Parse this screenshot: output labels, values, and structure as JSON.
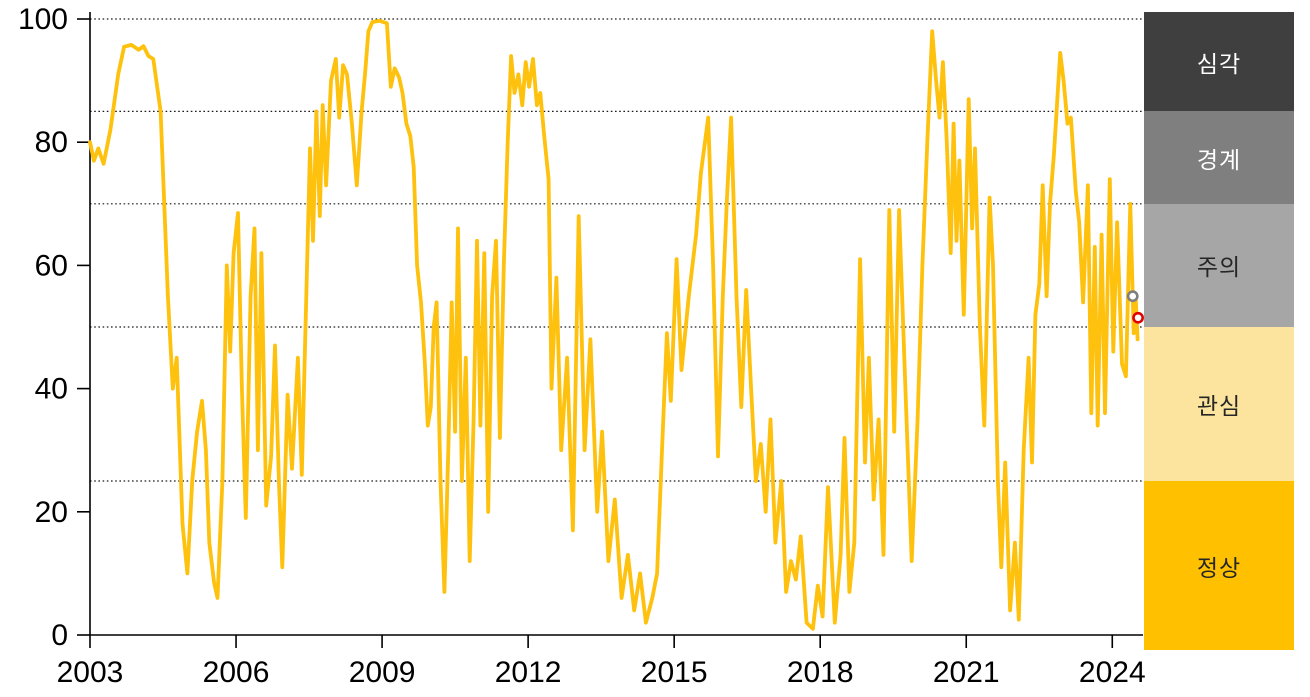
{
  "chart_data": {
    "type": "line",
    "title": "",
    "xlabel": "",
    "ylabel": "",
    "x_axis": {
      "min": 2003,
      "max": 2024.75,
      "tick_labels": [
        "2003",
        "2006",
        "2009",
        "2012",
        "2015",
        "2018",
        "2021",
        "2024"
      ],
      "tick_values": [
        2003,
        2006,
        2009,
        2012,
        2015,
        2018,
        2021,
        2024
      ]
    },
    "y_axis": {
      "min": 0,
      "max": 100,
      "tick_labels": [
        "0",
        "20",
        "40",
        "60",
        "80",
        "100"
      ],
      "tick_values": [
        0,
        20,
        40,
        60,
        80,
        100
      ]
    },
    "dotted_gridlines_at": [
      25,
      50,
      70,
      85,
      100
    ],
    "line_color": "#FEC10E",
    "series": [
      {
        "name": "index",
        "points": [
          [
            2003.0,
            80
          ],
          [
            2003.08,
            77
          ],
          [
            2003.17,
            79
          ],
          [
            2003.28,
            76.5
          ],
          [
            2003.42,
            82
          ],
          [
            2003.58,
            91
          ],
          [
            2003.7,
            95.5
          ],
          [
            2003.85,
            95.8
          ],
          [
            2004.0,
            95
          ],
          [
            2004.1,
            95.6
          ],
          [
            2004.2,
            94
          ],
          [
            2004.3,
            93.5
          ],
          [
            2004.45,
            85
          ],
          [
            2004.6,
            55
          ],
          [
            2004.7,
            40
          ],
          [
            2004.78,
            45
          ],
          [
            2004.9,
            18
          ],
          [
            2005.0,
            10
          ],
          [
            2005.1,
            25
          ],
          [
            2005.2,
            33
          ],
          [
            2005.3,
            38
          ],
          [
            2005.38,
            30
          ],
          [
            2005.45,
            15
          ],
          [
            2005.55,
            8.5
          ],
          [
            2005.62,
            6
          ],
          [
            2005.72,
            25
          ],
          [
            2005.81,
            60
          ],
          [
            2005.88,
            46
          ],
          [
            2005.95,
            62
          ],
          [
            2006.04,
            68.5
          ],
          [
            2006.12,
            40
          ],
          [
            2006.2,
            19
          ],
          [
            2006.3,
            55
          ],
          [
            2006.38,
            66
          ],
          [
            2006.45,
            30
          ],
          [
            2006.52,
            62
          ],
          [
            2006.62,
            21
          ],
          [
            2006.72,
            29
          ],
          [
            2006.8,
            47
          ],
          [
            2006.88,
            25
          ],
          [
            2006.95,
            11
          ],
          [
            2007.06,
            39
          ],
          [
            2007.15,
            27
          ],
          [
            2007.27,
            45
          ],
          [
            2007.35,
            26
          ],
          [
            2007.45,
            57
          ],
          [
            2007.52,
            79
          ],
          [
            2007.58,
            64
          ],
          [
            2007.65,
            85
          ],
          [
            2007.72,
            68
          ],
          [
            2007.78,
            86
          ],
          [
            2007.85,
            73
          ],
          [
            2007.95,
            90
          ],
          [
            2008.05,
            93.5
          ],
          [
            2008.12,
            84
          ],
          [
            2008.2,
            92.5
          ],
          [
            2008.28,
            91
          ],
          [
            2008.38,
            83
          ],
          [
            2008.48,
            73
          ],
          [
            2008.58,
            85
          ],
          [
            2008.65,
            91
          ],
          [
            2008.72,
            98
          ],
          [
            2008.8,
            99.5
          ],
          [
            2008.95,
            99.7
          ],
          [
            2009.1,
            99.3
          ],
          [
            2009.18,
            89
          ],
          [
            2009.26,
            92
          ],
          [
            2009.35,
            90.5
          ],
          [
            2009.42,
            88
          ],
          [
            2009.5,
            83
          ],
          [
            2009.58,
            81
          ],
          [
            2009.65,
            76
          ],
          [
            2009.72,
            60
          ],
          [
            2009.8,
            54
          ],
          [
            2009.88,
            44
          ],
          [
            2009.94,
            34
          ],
          [
            2010.0,
            37
          ],
          [
            2010.06,
            50
          ],
          [
            2010.12,
            54
          ],
          [
            2010.2,
            25
          ],
          [
            2010.28,
            7
          ],
          [
            2010.36,
            30
          ],
          [
            2010.43,
            54
          ],
          [
            2010.5,
            33
          ],
          [
            2010.56,
            66
          ],
          [
            2010.64,
            25
          ],
          [
            2010.72,
            45
          ],
          [
            2010.8,
            12
          ],
          [
            2010.88,
            35
          ],
          [
            2010.95,
            64
          ],
          [
            2011.02,
            34
          ],
          [
            2011.1,
            62
          ],
          [
            2011.18,
            20
          ],
          [
            2011.26,
            55
          ],
          [
            2011.34,
            64
          ],
          [
            2011.42,
            32
          ],
          [
            2011.5,
            60
          ],
          [
            2011.58,
            80
          ],
          [
            2011.65,
            94
          ],
          [
            2011.72,
            88
          ],
          [
            2011.8,
            91
          ],
          [
            2011.88,
            86
          ],
          [
            2011.95,
            93
          ],
          [
            2012.02,
            89
          ],
          [
            2012.1,
            93.5
          ],
          [
            2012.18,
            86
          ],
          [
            2012.25,
            88
          ],
          [
            2012.33,
            81
          ],
          [
            2012.42,
            74
          ],
          [
            2012.48,
            40
          ],
          [
            2012.58,
            58
          ],
          [
            2012.68,
            30
          ],
          [
            2012.8,
            45
          ],
          [
            2012.92,
            17
          ],
          [
            2013.04,
            68
          ],
          [
            2013.16,
            30
          ],
          [
            2013.28,
            48
          ],
          [
            2013.42,
            20
          ],
          [
            2013.52,
            33
          ],
          [
            2013.65,
            12
          ],
          [
            2013.78,
            22
          ],
          [
            2013.92,
            6
          ],
          [
            2014.05,
            13
          ],
          [
            2014.18,
            4
          ],
          [
            2014.3,
            10
          ],
          [
            2014.42,
            2
          ],
          [
            2014.55,
            6
          ],
          [
            2014.65,
            10
          ],
          [
            2014.75,
            30
          ],
          [
            2014.85,
            49
          ],
          [
            2014.93,
            38
          ],
          [
            2015.05,
            61
          ],
          [
            2015.15,
            43
          ],
          [
            2015.3,
            55
          ],
          [
            2015.45,
            65
          ],
          [
            2015.55,
            75
          ],
          [
            2015.7,
            84
          ],
          [
            2015.8,
            60
          ],
          [
            2015.9,
            29
          ],
          [
            2016.0,
            55
          ],
          [
            2016.08,
            70
          ],
          [
            2016.17,
            84
          ],
          [
            2016.28,
            55
          ],
          [
            2016.38,
            37
          ],
          [
            2016.48,
            56
          ],
          [
            2016.58,
            40
          ],
          [
            2016.68,
            25
          ],
          [
            2016.78,
            31
          ],
          [
            2016.88,
            20
          ],
          [
            2016.98,
            35
          ],
          [
            2017.08,
            15
          ],
          [
            2017.2,
            25
          ],
          [
            2017.3,
            7
          ],
          [
            2017.4,
            12
          ],
          [
            2017.5,
            9
          ],
          [
            2017.6,
            16
          ],
          [
            2017.72,
            2
          ],
          [
            2017.85,
            1
          ],
          [
            2017.95,
            8
          ],
          [
            2018.05,
            3
          ],
          [
            2018.16,
            24
          ],
          [
            2018.3,
            2
          ],
          [
            2018.42,
            13
          ],
          [
            2018.5,
            32
          ],
          [
            2018.6,
            7
          ],
          [
            2018.7,
            15
          ],
          [
            2018.82,
            61
          ],
          [
            2018.92,
            28
          ],
          [
            2019.0,
            45
          ],
          [
            2019.1,
            22
          ],
          [
            2019.2,
            35
          ],
          [
            2019.3,
            13
          ],
          [
            2019.42,
            69
          ],
          [
            2019.52,
            33
          ],
          [
            2019.62,
            69
          ],
          [
            2019.75,
            40
          ],
          [
            2019.88,
            12
          ],
          [
            2020.0,
            35
          ],
          [
            2020.1,
            60
          ],
          [
            2020.2,
            80
          ],
          [
            2020.3,
            98
          ],
          [
            2020.38,
            90
          ],
          [
            2020.45,
            84
          ],
          [
            2020.52,
            93
          ],
          [
            2020.6,
            80
          ],
          [
            2020.68,
            62
          ],
          [
            2020.74,
            83
          ],
          [
            2020.8,
            64
          ],
          [
            2020.86,
            77
          ],
          [
            2020.95,
            52
          ],
          [
            2021.05,
            87
          ],
          [
            2021.12,
            66
          ],
          [
            2021.18,
            79
          ],
          [
            2021.28,
            50
          ],
          [
            2021.37,
            34
          ],
          [
            2021.48,
            71
          ],
          [
            2021.55,
            60
          ],
          [
            2021.65,
            25
          ],
          [
            2021.72,
            11
          ],
          [
            2021.8,
            28
          ],
          [
            2021.9,
            4
          ],
          [
            2022.0,
            15
          ],
          [
            2022.08,
            2.5
          ],
          [
            2022.18,
            30
          ],
          [
            2022.28,
            45
          ],
          [
            2022.35,
            28
          ],
          [
            2022.42,
            52
          ],
          [
            2022.5,
            57
          ],
          [
            2022.57,
            73
          ],
          [
            2022.65,
            55
          ],
          [
            2022.72,
            70
          ],
          [
            2022.8,
            78
          ],
          [
            2022.93,
            94.5
          ],
          [
            2023.0,
            90
          ],
          [
            2023.08,
            83
          ],
          [
            2023.15,
            84
          ],
          [
            2023.25,
            72
          ],
          [
            2023.32,
            67
          ],
          [
            2023.4,
            54
          ],
          [
            2023.5,
            73
          ],
          [
            2023.57,
            36
          ],
          [
            2023.64,
            63
          ],
          [
            2023.7,
            34
          ],
          [
            2023.78,
            65
          ],
          [
            2023.85,
            36
          ],
          [
            2023.95,
            74
          ],
          [
            2024.02,
            46
          ],
          [
            2024.1,
            67
          ],
          [
            2024.2,
            44
          ],
          [
            2024.28,
            42
          ],
          [
            2024.37,
            70
          ],
          [
            2024.44,
            49
          ],
          [
            2024.48,
            55
          ],
          [
            2024.52,
            48
          ]
        ]
      }
    ],
    "markers": [
      {
        "name": "previous-point-marker",
        "t": 2024.42,
        "v": 55,
        "color": "#7F7F7F"
      },
      {
        "name": "latest-point-marker",
        "t": 2024.53,
        "v": 51.5,
        "color": "#E00000"
      }
    ],
    "bands": [
      {
        "label": "심각",
        "from": 85,
        "to": 100,
        "bg": "#3F3F3F",
        "fg": "#FFFFFF"
      },
      {
        "label": "경계",
        "from": 70,
        "to": 85,
        "bg": "#7F7F7F",
        "fg": "#FFFFFF"
      },
      {
        "label": "주의",
        "from": 50,
        "to": 70,
        "bg": "#A6A6A6",
        "fg": "#262626"
      },
      {
        "label": "관심",
        "from": 25,
        "to": 50,
        "bg": "#FCE49E",
        "fg": "#262626"
      },
      {
        "label": "정상",
        "from": 0,
        "to": 25,
        "bg": "#FFC000",
        "fg": "#262626"
      }
    ],
    "legend_position": "right-band-column",
    "grid": "dotted-threshold-lines-only"
  }
}
